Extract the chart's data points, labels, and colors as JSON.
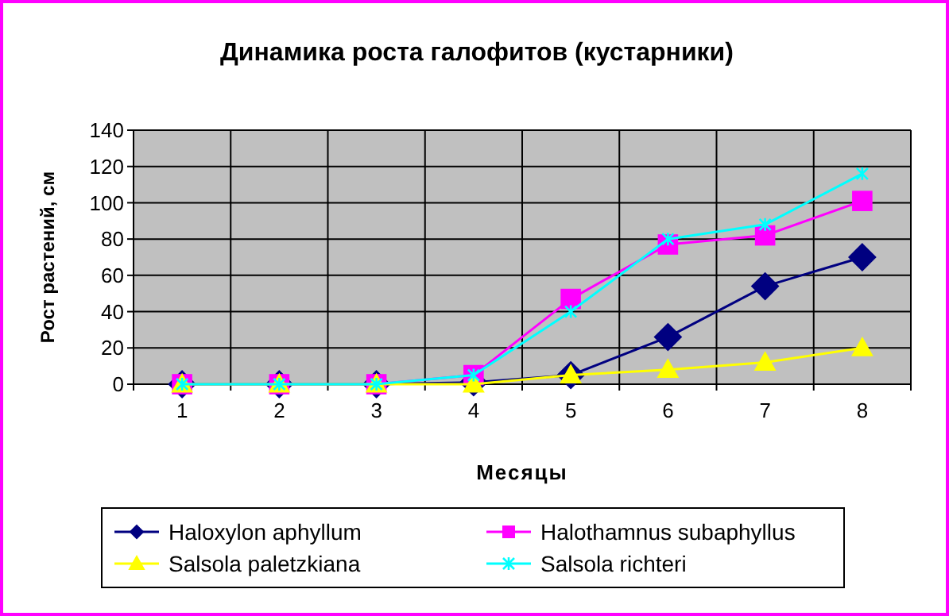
{
  "chart_data": {
    "type": "line",
    "title": "Динамика роста галофитов (кустарники)",
    "xlabel": "Месяцы",
    "ylabel": "Рост растений, см",
    "categories": [
      "1",
      "2",
      "3",
      "4",
      "5",
      "6",
      "7",
      "8"
    ],
    "ylim": [
      0,
      140
    ],
    "yticks": [
      0,
      20,
      40,
      60,
      80,
      100,
      120,
      140
    ],
    "grid": true,
    "legend": "bottom",
    "series": [
      {
        "name": "Haloxylon aphyllum",
        "color": "#000080",
        "marker": "diamond",
        "values": [
          0,
          0,
          0,
          1,
          5,
          26,
          54,
          70
        ]
      },
      {
        "name": "Halothamnus subaphyllus",
        "color": "#ff00ff",
        "marker": "square",
        "values": [
          0,
          0,
          0,
          5,
          47,
          77,
          82,
          101
        ]
      },
      {
        "name": "Salsola paletzkiana",
        "color": "#ffff00",
        "marker": "triangle",
        "values": [
          0,
          0,
          0,
          0,
          5,
          8,
          12,
          20
        ]
      },
      {
        "name": "Salsola richteri",
        "color": "#00ffff",
        "marker": "cross",
        "values": [
          0,
          0,
          0,
          5,
          40,
          80,
          88,
          116
        ]
      }
    ]
  }
}
